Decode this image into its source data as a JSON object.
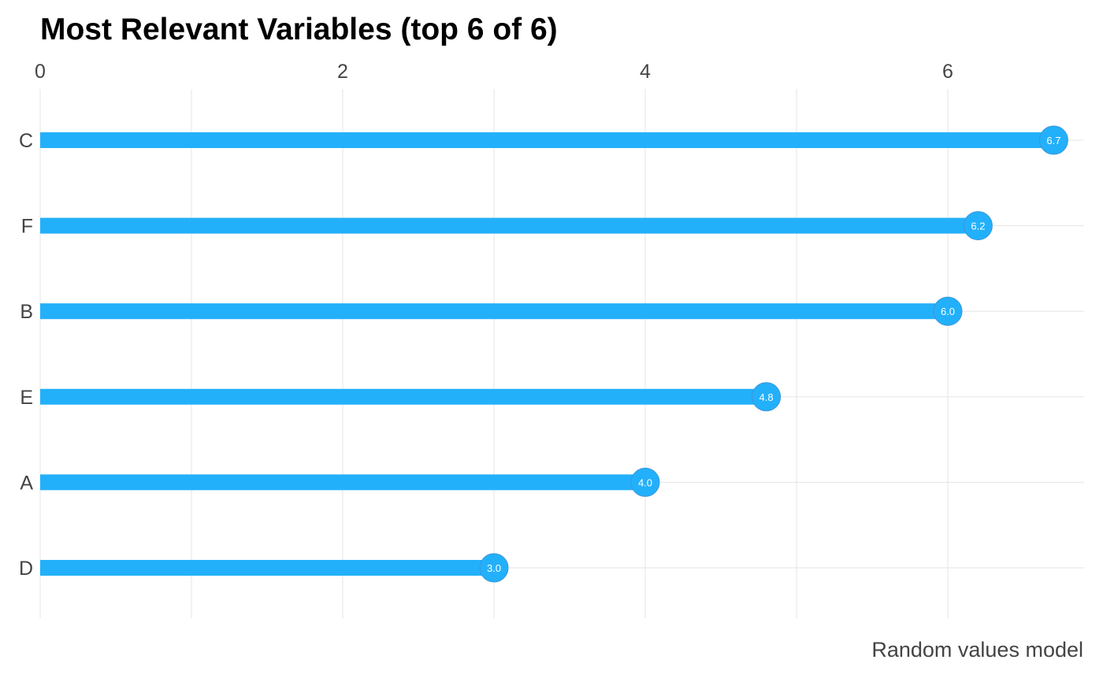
{
  "chart_data": {
    "type": "bar",
    "style": "lollipop",
    "orientation": "horizontal",
    "title": "Most Relevant Variables (top 6 of 6)",
    "caption": "Random values model",
    "xlabel": "",
    "ylabel": "",
    "categories": [
      "C",
      "F",
      "B",
      "E",
      "A",
      "D"
    ],
    "values": [
      6.7,
      6.2,
      6.0,
      4.8,
      4.0,
      3.0
    ],
    "value_labels": [
      "6.7",
      "6.2",
      "6.0",
      "4.8",
      "4.0",
      "3.0"
    ],
    "x_ticks": [
      0,
      2,
      4,
      6
    ],
    "x_tick_labels": [
      "0",
      "2",
      "4",
      "6"
    ],
    "xlim": [
      0,
      7
    ],
    "x_axis_position": "top",
    "grid": true,
    "legend": "none",
    "colors": {
      "bar": "#23b0fb",
      "point": "#23b0fb",
      "point_stroke": "#3c95d8",
      "point_label": "#ffffff",
      "grid": "#e5e5e5"
    }
  }
}
